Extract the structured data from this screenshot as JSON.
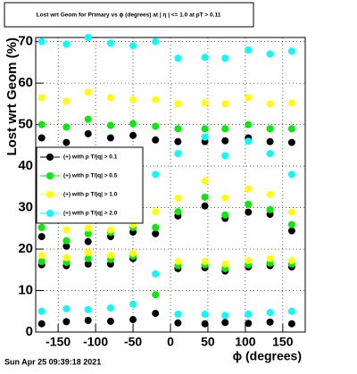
{
  "chart_data": {
    "type": "scatter",
    "title": "Lost wrt Geom for Primary vs ϕ (degrees) at | η | <= 1.0 at pT > 0.11",
    "x_label": "ϕ (degrees)",
    "y_label": "Lost wrt Geom (%)",
    "timestamp": "Sun Apr 25 09:39:18 2021",
    "xlim": [
      -180,
      180
    ],
    "ylim": [
      0,
      71
    ],
    "xticks": [
      -150,
      -100,
      -50,
      0,
      50,
      100,
      150
    ],
    "yticks": [
      0,
      10,
      20,
      30,
      40,
      50,
      60,
      70
    ],
    "grid": true,
    "legend": "left",
    "series": [
      {
        "name": "(+) with p T/|q| > 0.1",
        "color": "#000000",
        "x": [
          -172,
          -139,
          -110,
          -80,
          -50,
          -20,
          10,
          46,
          73,
          104,
          133,
          162,
          -172,
          -139,
          -110,
          -80,
          -50,
          -20,
          10,
          46,
          73,
          104,
          133,
          162,
          -172,
          -139,
          -110,
          -80,
          -50,
          10,
          46,
          73,
          104,
          133,
          162,
          -172,
          -139,
          -110,
          -80,
          -50,
          -20,
          10,
          46,
          73,
          104,
          133,
          162
        ],
        "values": [
          46.8,
          45.7,
          47.8,
          46.8,
          47.4,
          46.3,
          45.9,
          45.9,
          46.1,
          46.8,
          45.9,
          45.7,
          23,
          20.7,
          21.8,
          23,
          24.1,
          23.7,
          28,
          30.4,
          27.4,
          28.9,
          28.4,
          24.4,
          16.2,
          16,
          16.4,
          16.4,
          17.7,
          15.3,
          15.5,
          14.7,
          15.7,
          16,
          15.7,
          2,
          2.5,
          2.8,
          2.6,
          3,
          4.5,
          2.2,
          2,
          2.3,
          2.1,
          2.4,
          2
        ]
      },
      {
        "name": "(+) with p T/|q| > 0.5",
        "color": "#00ee00",
        "x": [
          -172,
          -139,
          -110,
          -80,
          -50,
          -20,
          10,
          46,
          73,
          104,
          133,
          162,
          -172,
          -139,
          -110,
          -80,
          -50,
          -20,
          10,
          46,
          73,
          104,
          133,
          162,
          -172,
          -139,
          -110,
          -80,
          -50,
          -20,
          10,
          46,
          73,
          104,
          133,
          162
        ],
        "values": [
          50,
          49.4,
          51.3,
          49.8,
          50.2,
          49.6,
          49,
          49,
          49,
          50,
          49,
          49,
          25.2,
          22,
          23.7,
          24,
          25.2,
          25.2,
          29,
          32.5,
          28.2,
          30.8,
          29.5,
          25.9,
          17,
          16.8,
          17.7,
          17.5,
          18.3,
          9,
          16,
          16.2,
          15.3,
          16.2,
          16.6,
          16.4
        ]
      },
      {
        "name": "(+) with p T/|q| > 1.0",
        "color": "#ffff00",
        "x": [
          -172,
          -139,
          -110,
          -80,
          -50,
          -20,
          10,
          46,
          73,
          104,
          133,
          162,
          -20,
          10,
          46,
          73,
          104,
          133,
          162,
          -139,
          -110,
          -80,
          -50,
          -172,
          -139,
          -110,
          -80,
          -50,
          10,
          46,
          73,
          104,
          133,
          162
        ],
        "values": [
          56.5,
          55.6,
          57.8,
          56.5,
          56,
          56,
          55,
          55.2,
          55,
          56.5,
          55,
          55.2,
          29,
          32.3,
          36.4,
          32.3,
          34.5,
          33.2,
          28.9,
          24.6,
          25,
          24.6,
          25.9,
          18.5,
          17.9,
          19.2,
          18.5,
          19,
          17,
          17,
          16.4,
          17.2,
          17.7,
          17.2
        ]
      },
      {
        "name": "(+) with p T/|q| > 2.0",
        "color": "#00ffff",
        "x": [
          -172,
          -139,
          -110,
          -80,
          -50,
          -20,
          10,
          46,
          73,
          104,
          133,
          162,
          -20,
          10,
          46,
          73,
          104,
          133,
          162,
          -20,
          -172,
          -139,
          -110,
          -80,
          -50,
          10,
          46,
          73,
          104,
          133,
          162
        ],
        "values": [
          70,
          69.4,
          71,
          69.6,
          69,
          70,
          66,
          66.2,
          66,
          68,
          67,
          67.7,
          38,
          43,
          47,
          42.5,
          46,
          43,
          38,
          14,
          5,
          5.6,
          5.4,
          5.8,
          6.7,
          4.3,
          4.3,
          4,
          4.3,
          4.7,
          5
        ]
      }
    ]
  }
}
